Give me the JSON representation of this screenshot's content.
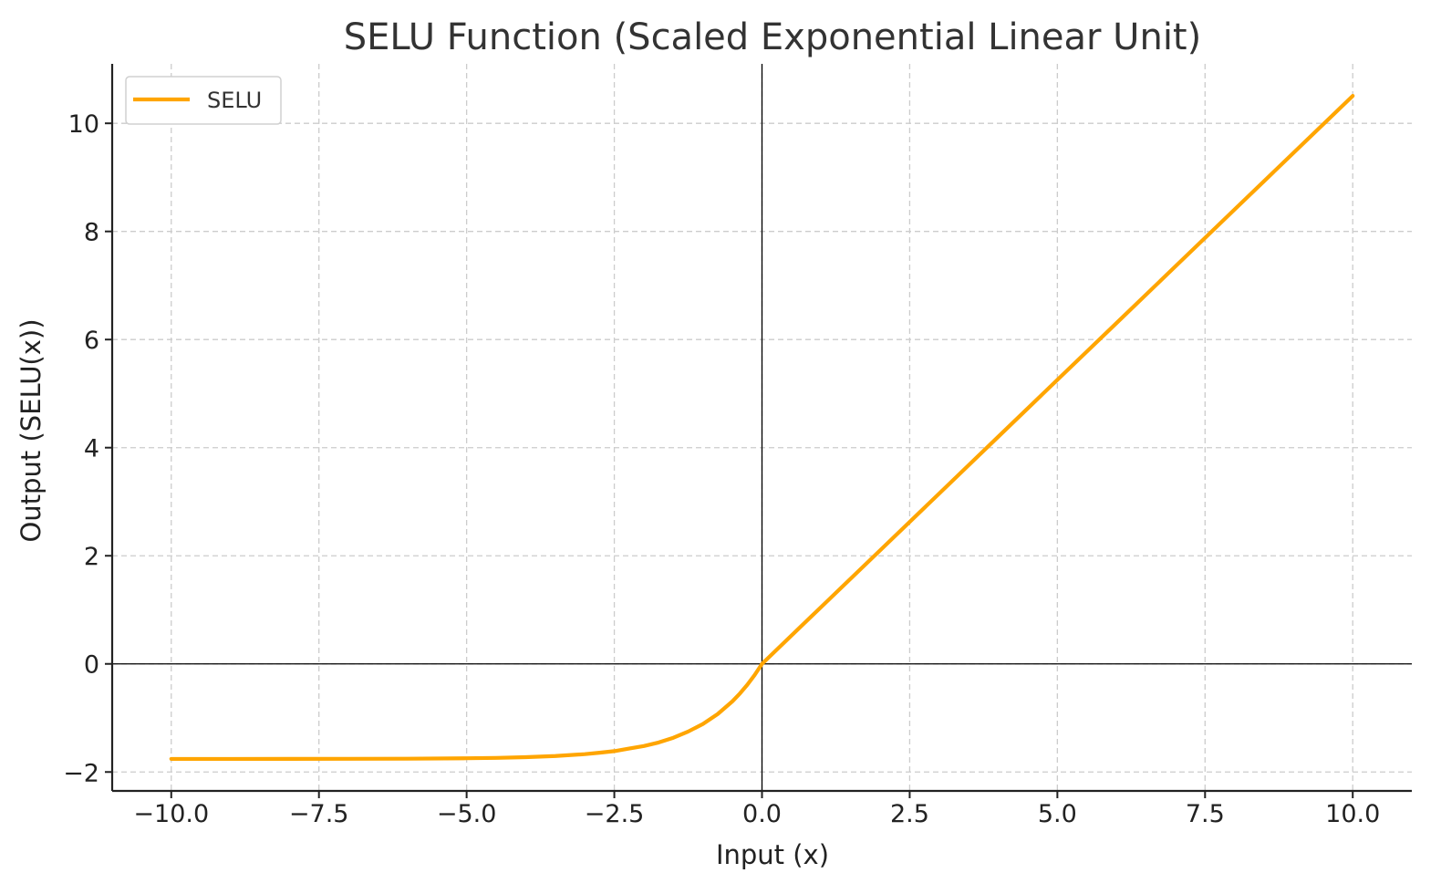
{
  "chart_data": {
    "type": "line",
    "title": "SELU Function (Scaled Exponential Linear Unit)",
    "xlabel": "Input (x)",
    "ylabel": "Output (SELU(x))",
    "xlim": [
      -11,
      11
    ],
    "ylim": [
      -2.35,
      11.1
    ],
    "x_ticks": [
      -10.0,
      -7.5,
      -5.0,
      -2.5,
      0.0,
      2.5,
      5.0,
      7.5,
      10.0
    ],
    "x_tick_labels": [
      "−10.0",
      "−7.5",
      "−5.0",
      "−2.5",
      "0.0",
      "2.5",
      "5.0",
      "7.5",
      "10.0"
    ],
    "y_ticks": [
      -2,
      0,
      2,
      4,
      6,
      8,
      10
    ],
    "y_tick_labels": [
      "−2",
      "0",
      "2",
      "4",
      "6",
      "8",
      "10"
    ],
    "grid": true,
    "zero_lines": true,
    "legend": {
      "placement": "top-left",
      "entries": [
        "SELU"
      ]
    },
    "series": [
      {
        "name": "SELU",
        "color": "#FFA500",
        "x": [
          -10,
          -9,
          -8,
          -7,
          -6,
          -5,
          -4.5,
          -4,
          -3.5,
          -3,
          -2.75,
          -2.5,
          -2.25,
          -2,
          -1.75,
          -1.5,
          -1.25,
          -1,
          -0.75,
          -0.5,
          -0.375,
          -0.25,
          -0.125,
          0,
          1,
          2,
          3,
          4,
          5,
          6,
          7,
          8,
          9,
          10
        ],
        "y": [
          -1.758,
          -1.758,
          -1.757,
          -1.756,
          -1.754,
          -1.746,
          -1.739,
          -1.726,
          -1.705,
          -1.67,
          -1.643,
          -1.614,
          -1.566,
          -1.52,
          -1.454,
          -1.366,
          -1.252,
          -1.111,
          -0.928,
          -0.692,
          -0.549,
          -0.389,
          -0.207,
          0,
          1.051,
          2.101,
          3.152,
          4.203,
          5.254,
          6.304,
          7.355,
          8.406,
          9.456,
          10.507
        ]
      }
    ]
  }
}
